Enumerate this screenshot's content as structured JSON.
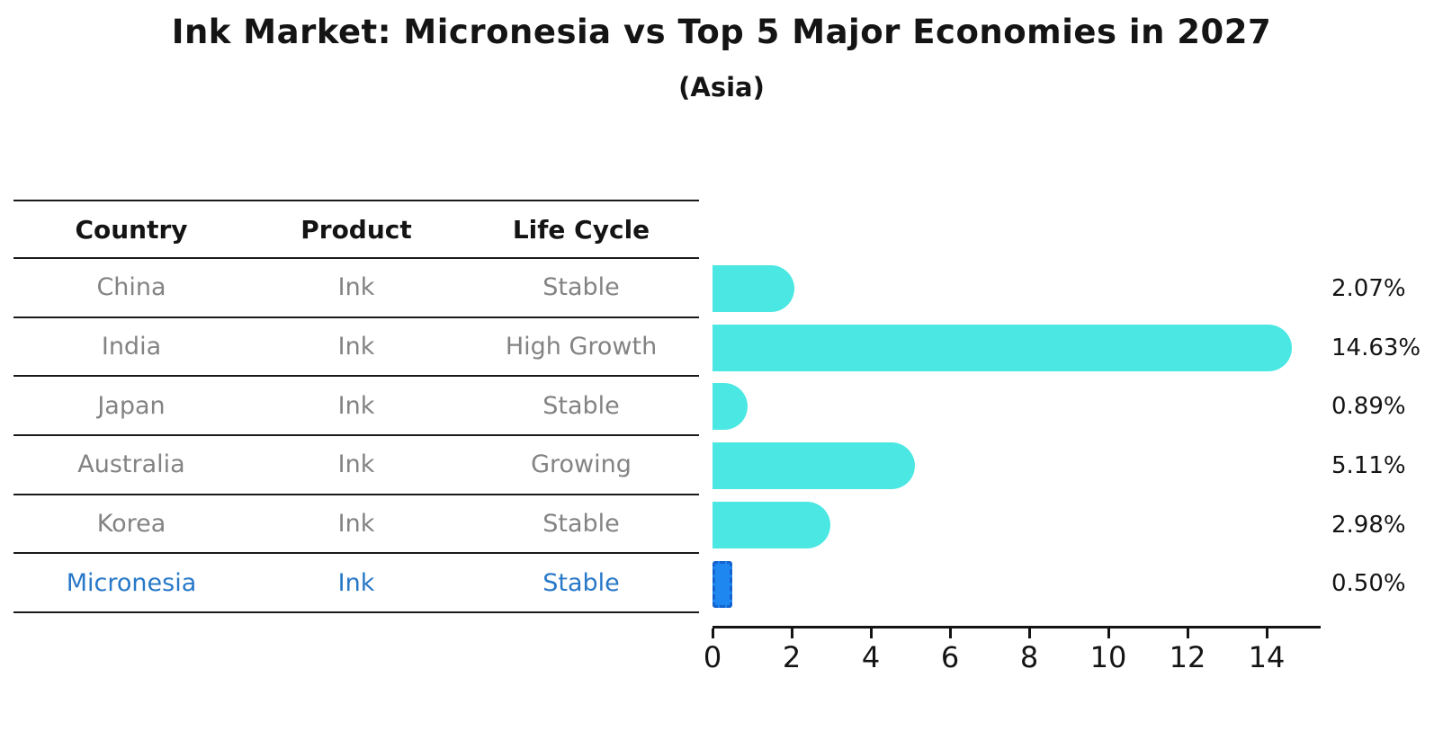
{
  "title": "Ink Market: Micronesia vs Top 5 Major Economies in 2027",
  "subtitle": "(Asia)",
  "table": {
    "headers": [
      "Country",
      "Product",
      "Life Cycle"
    ],
    "rows": [
      {
        "country": "China",
        "product": "Ink",
        "life_cycle": "Stable",
        "highlight": false
      },
      {
        "country": "India",
        "product": "Ink",
        "life_cycle": "High Growth",
        "highlight": false
      },
      {
        "country": "Japan",
        "product": "Ink",
        "life_cycle": "Stable",
        "highlight": false
      },
      {
        "country": "Australia",
        "product": "Ink",
        "life_cycle": "Growing",
        "highlight": false
      },
      {
        "country": "Korea",
        "product": "Ink",
        "life_cycle": "Stable",
        "highlight": false
      },
      {
        "country": "Micronesia",
        "product": "Ink",
        "life_cycle": "Stable",
        "highlight": true
      }
    ]
  },
  "chart_data": {
    "type": "bar",
    "orientation": "horizontal",
    "categories": [
      "China",
      "India",
      "Japan",
      "Australia",
      "Korea",
      "Micronesia"
    ],
    "values": [
      2.07,
      14.63,
      0.89,
      5.11,
      2.98,
      0.5
    ],
    "value_labels": [
      "2.07%",
      "14.63%",
      "0.89%",
      "5.11%",
      "2.98%",
      "0.50%"
    ],
    "x_ticks": [
      "0",
      "2",
      "4",
      "6",
      "8",
      "10",
      "12",
      "14"
    ],
    "x_tick_values": [
      0,
      2,
      4,
      6,
      8,
      10,
      12,
      14
    ],
    "xlim": [
      0,
      15.36
    ],
    "grid": false,
    "legend": null,
    "highlight_index": 5,
    "colors": {
      "bar": "#4BE7E3",
      "highlight_bar": "#1E87F0",
      "highlight_bar_border": "#1563CF",
      "highlight_text": "#2878C8",
      "row_text": "#838383",
      "axis_text": "#141414"
    }
  }
}
